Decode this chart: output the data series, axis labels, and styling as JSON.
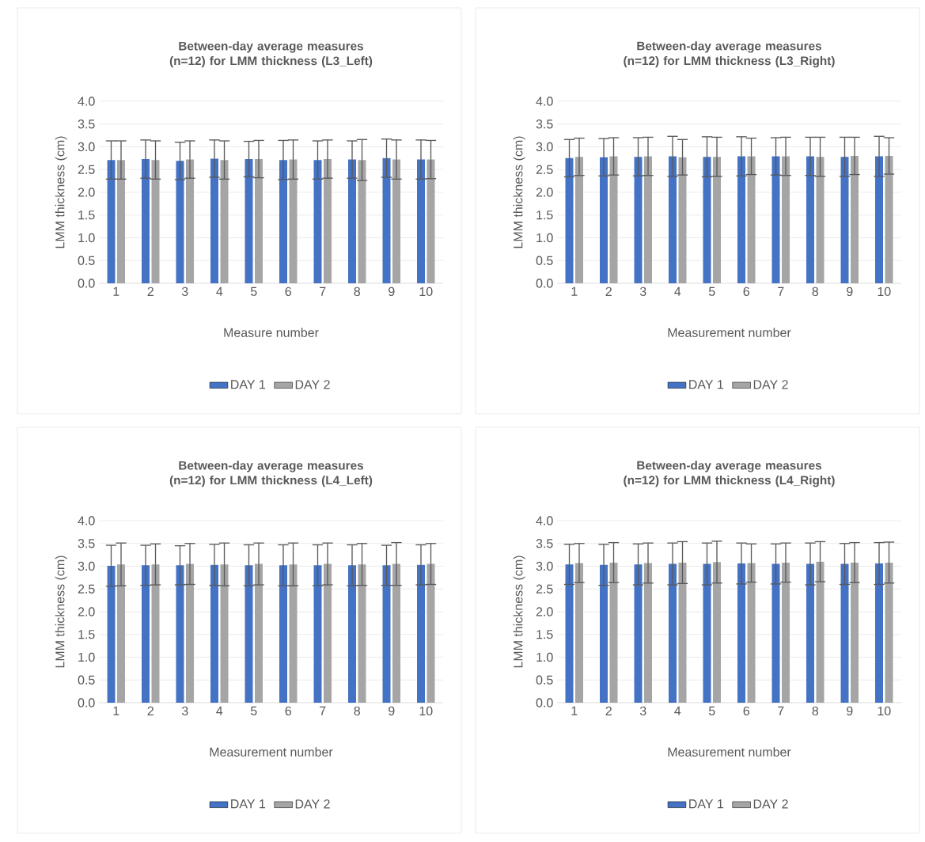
{
  "chart_data": [
    {
      "type": "bar",
      "title": "Between-day average measures (n=12) for LMM thickness (L3_Left)",
      "xlabel": "Measure number",
      "ylabel": "LMM thickness (cm)",
      "categories": [
        "1",
        "2",
        "3",
        "4",
        "5",
        "6",
        "7",
        "8",
        "9",
        "10"
      ],
      "ylim": [
        0,
        4
      ],
      "yticks": [
        {
          "value": 0,
          "label": "0.0"
        },
        {
          "value": 0.5,
          "label": "0.5"
        },
        {
          "value": 1,
          "label": "1.0"
        },
        {
          "value": 1.5,
          "label": "1.5"
        },
        {
          "value": 2,
          "label": "2.0"
        },
        {
          "value": 2.5,
          "label": "2.5"
        },
        {
          "value": 3,
          "label": "3.0"
        },
        {
          "value": 3.5,
          "label": "3.5"
        },
        {
          "value": 4,
          "label": "4.0"
        }
      ],
      "grid": "y",
      "legend": "bottom",
      "series": [
        {
          "name": "DAY 1",
          "color": "#4472c4",
          "values": [
            2.71,
            2.73,
            2.69,
            2.74,
            2.73,
            2.71,
            2.71,
            2.72,
            2.75,
            2.72
          ],
          "errors": [
            0.42,
            0.42,
            0.41,
            0.41,
            0.39,
            0.43,
            0.42,
            0.41,
            0.42,
            0.43
          ]
        },
        {
          "name": "DAY 2",
          "color": "#a5a5a5",
          "values": [
            2.71,
            2.71,
            2.72,
            2.71,
            2.73,
            2.72,
            2.73,
            2.71,
            2.72,
            2.72
          ],
          "errors": [
            0.42,
            0.42,
            0.41,
            0.42,
            0.41,
            0.43,
            0.42,
            0.45,
            0.43,
            0.42
          ]
        }
      ]
    },
    {
      "type": "bar",
      "title": "Between-day average measures (n=12) for LMM thickness (L3_Right)",
      "xlabel": "Measurement number",
      "ylabel": "LMM thickness (cm)",
      "categories": [
        "1",
        "2",
        "3",
        "4",
        "5",
        "6",
        "7",
        "8",
        "9",
        "10"
      ],
      "ylim": [
        0,
        4
      ],
      "yticks": [
        {
          "value": 0,
          "label": "0.0"
        },
        {
          "value": 0.5,
          "label": "0.5"
        },
        {
          "value": 1,
          "label": "1.0"
        },
        {
          "value": 1.5,
          "label": "1.5"
        },
        {
          "value": 2,
          "label": "2.0"
        },
        {
          "value": 2.5,
          "label": "2.5"
        },
        {
          "value": 3,
          "label": "3.0"
        },
        {
          "value": 3.5,
          "label": "3.5"
        },
        {
          "value": 4,
          "label": "4.0"
        }
      ],
      "grid": "y",
      "legend": "bottom",
      "series": [
        {
          "name": "DAY 1",
          "color": "#4472c4",
          "values": [
            2.75,
            2.77,
            2.78,
            2.79,
            2.78,
            2.79,
            2.79,
            2.79,
            2.78,
            2.79
          ],
          "errors": [
            0.41,
            0.41,
            0.42,
            0.44,
            0.44,
            0.43,
            0.41,
            0.42,
            0.43,
            0.44
          ]
        },
        {
          "name": "DAY 2",
          "color": "#a5a5a5",
          "values": [
            2.78,
            2.79,
            2.79,
            2.77,
            2.78,
            2.79,
            2.79,
            2.78,
            2.8,
            2.8
          ],
          "errors": [
            0.41,
            0.41,
            0.42,
            0.39,
            0.43,
            0.4,
            0.42,
            0.43,
            0.41,
            0.4
          ]
        }
      ]
    },
    {
      "type": "bar",
      "title": "Between-day average measures (n=12) for LMM thickness (L4_Left)",
      "xlabel": "Measurement number",
      "ylabel": "LMM thickness (cm)",
      "categories": [
        "1",
        "2",
        "3",
        "4",
        "5",
        "6",
        "7",
        "8",
        "9",
        "10"
      ],
      "ylim": [
        0,
        4
      ],
      "yticks": [
        {
          "value": 0,
          "label": "0.0"
        },
        {
          "value": 0.5,
          "label": "0.5"
        },
        {
          "value": 1,
          "label": "1.0"
        },
        {
          "value": 1.5,
          "label": "1.5"
        },
        {
          "value": 2,
          "label": "2.0"
        },
        {
          "value": 2.5,
          "label": "2.5"
        },
        {
          "value": 3,
          "label": "3.0"
        },
        {
          "value": 3.5,
          "label": "3.5"
        },
        {
          "value": 4,
          "label": "4.0"
        }
      ],
      "grid": "y",
      "legend": "bottom",
      "series": [
        {
          "name": "DAY 1",
          "color": "#4472c4",
          "values": [
            3.01,
            3.02,
            3.02,
            3.03,
            3.02,
            3.02,
            3.02,
            3.02,
            3.02,
            3.03
          ],
          "errors": [
            0.45,
            0.44,
            0.43,
            0.45,
            0.45,
            0.45,
            0.45,
            0.45,
            0.44,
            0.44
          ]
        },
        {
          "name": "DAY 2",
          "color": "#a5a5a5",
          "values": [
            3.04,
            3.04,
            3.05,
            3.04,
            3.05,
            3.04,
            3.05,
            3.04,
            3.05,
            3.05
          ],
          "errors": [
            0.47,
            0.45,
            0.45,
            0.47,
            0.46,
            0.47,
            0.46,
            0.46,
            0.47,
            0.45
          ]
        }
      ]
    },
    {
      "type": "bar",
      "title": "Between-day average measures (n=12) for LMM thickness (L4_Right)",
      "xlabel": "Measurement number",
      "ylabel": "LMM thickness (cm)",
      "categories": [
        "1",
        "2",
        "3",
        "4",
        "5",
        "6",
        "7",
        "8",
        "9",
        "10"
      ],
      "ylim": [
        0,
        4
      ],
      "yticks": [
        {
          "value": 0,
          "label": "0.0"
        },
        {
          "value": 0.5,
          "label": "0.5"
        },
        {
          "value": 1,
          "label": "1.0"
        },
        {
          "value": 1.5,
          "label": "1.5"
        },
        {
          "value": 2,
          "label": "2.0"
        },
        {
          "value": 2.5,
          "label": "2.5"
        },
        {
          "value": 3,
          "label": "3.0"
        },
        {
          "value": 3.5,
          "label": "3.5"
        },
        {
          "value": 4,
          "label": "4.0"
        }
      ],
      "grid": "y",
      "legend": "bottom",
      "series": [
        {
          "name": "DAY 1",
          "color": "#4472c4",
          "values": [
            3.04,
            3.03,
            3.04,
            3.05,
            3.05,
            3.06,
            3.05,
            3.05,
            3.05,
            3.06
          ],
          "errors": [
            0.44,
            0.45,
            0.45,
            0.46,
            0.46,
            0.45,
            0.44,
            0.46,
            0.45,
            0.46
          ]
        },
        {
          "name": "DAY 2",
          "color": "#a5a5a5",
          "values": [
            3.07,
            3.08,
            3.07,
            3.08,
            3.09,
            3.07,
            3.08,
            3.1,
            3.08,
            3.08
          ],
          "errors": [
            0.43,
            0.44,
            0.44,
            0.46,
            0.46,
            0.42,
            0.43,
            0.44,
            0.44,
            0.45
          ]
        }
      ]
    }
  ]
}
